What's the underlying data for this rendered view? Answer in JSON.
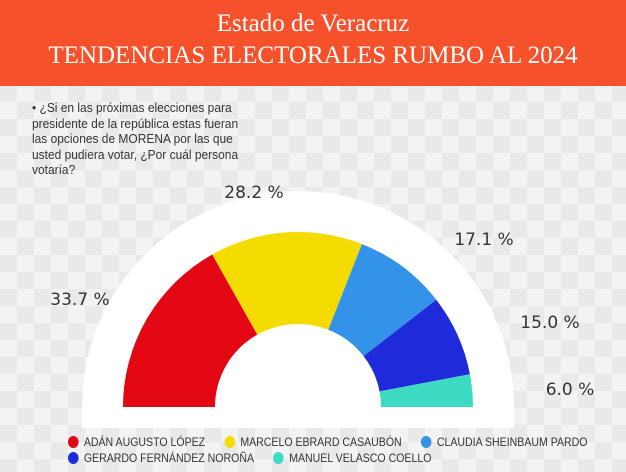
{
  "header": {
    "line1": "Estado de Veracruz",
    "line2": "TENDENCIAS ELECTORALES RUMBO AL 2024"
  },
  "question": "• ¿Si en las próximas elecciones para  presidente de la república estas fueran las opciones de MORENA por las que usted pudiera votar, ¿Por cuál persona  votaría?",
  "chart_data": {
    "type": "pie",
    "subtype": "half-donut",
    "categories": [
      "ADÁN AUGUSTO LÓPEZ",
      "MARCELO EBRARD CASAUBÓN",
      "CLAUDIA SHEINBAUM PARDO",
      "GERARDO FERNÁNDEZ NOROÑA",
      "MANUEL VELASCO COELLO"
    ],
    "values": [
      33.7,
      28.2,
      17.1,
      15.0,
      6.0
    ],
    "labels": [
      "33.7 %",
      "28.2 %",
      "17.1 %",
      "15.0 %",
      "6.0 %"
    ],
    "colors": [
      "#e30613",
      "#f5dc00",
      "#3293e8",
      "#1f2adb",
      "#3ddbc2"
    ],
    "legend_placement": "bottom"
  }
}
